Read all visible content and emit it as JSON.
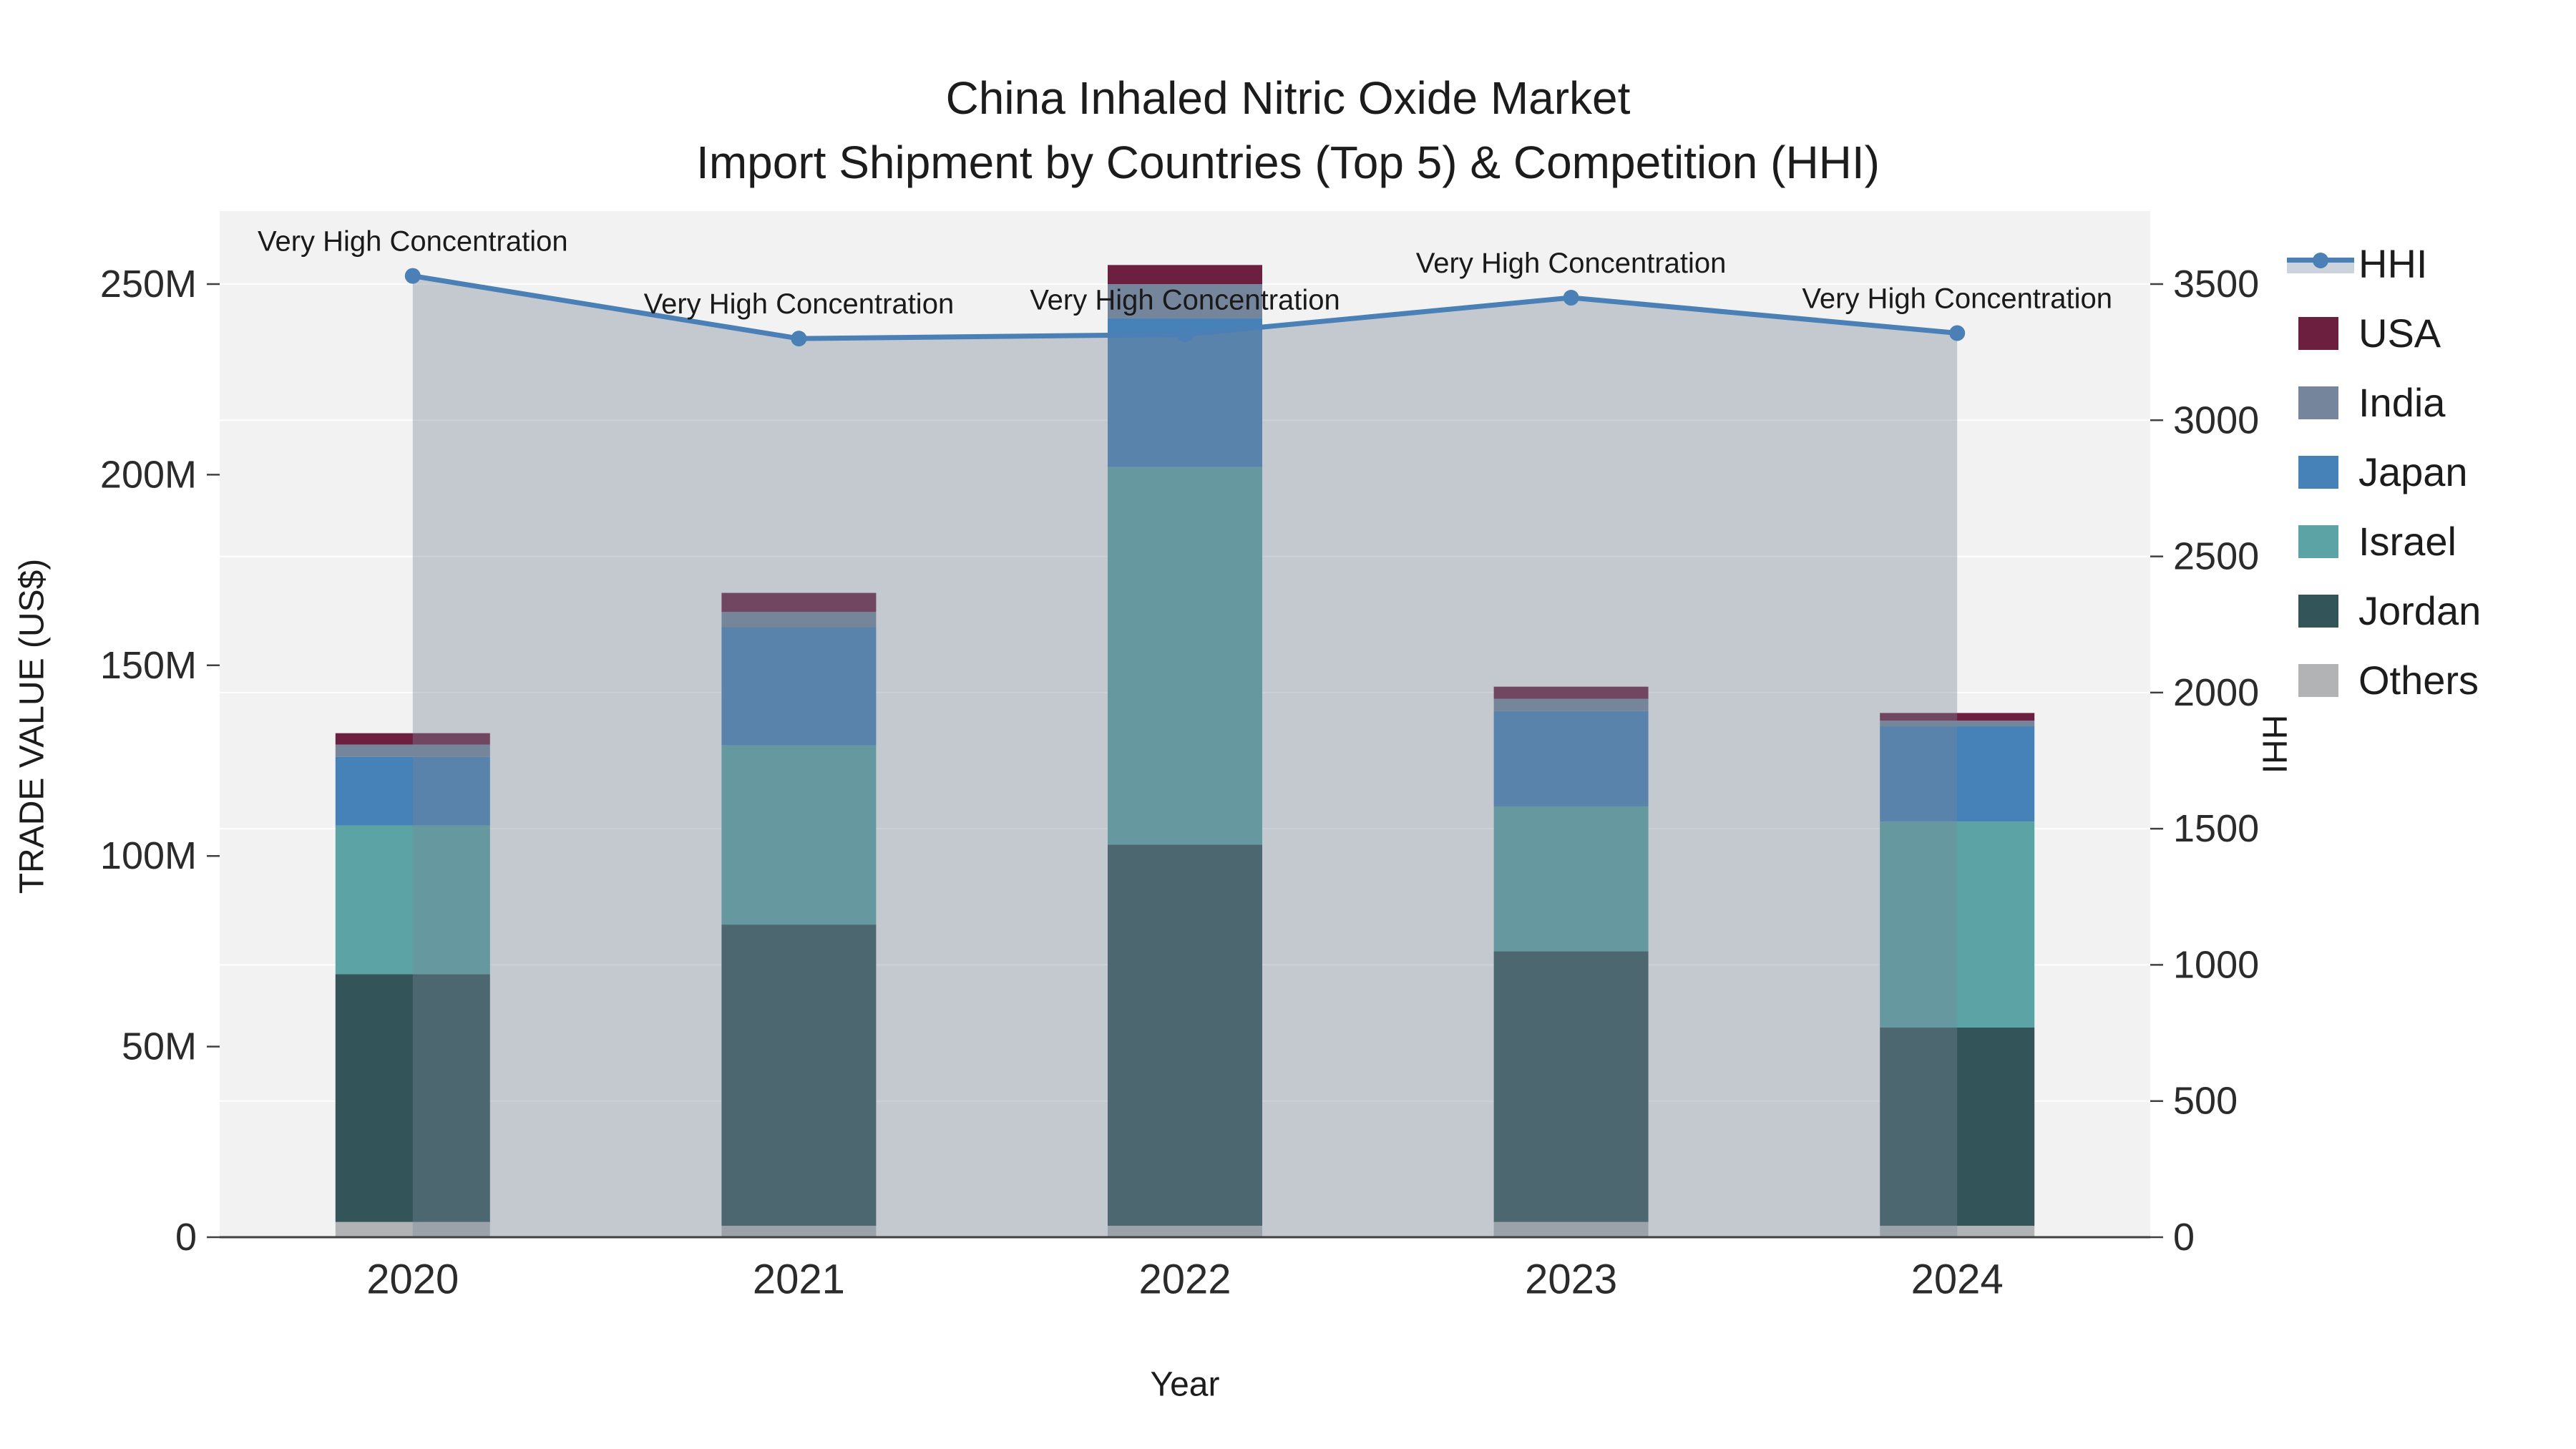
{
  "title": {
    "line1": "China Inhaled Nitric Oxide Market",
    "line2": "Import Shipment by Countries (Top 5) & Competition (HHI)"
  },
  "colors": {
    "page_background": "#ffffff",
    "plot_background": "#f2f2f3",
    "gridline": "#ffffff",
    "axis_line": "#404040",
    "text": "#1c1c1c",
    "tick_text": "#2b2b2b",
    "hhi_line": "#4a80b5",
    "hhi_area_fill": "rgba(122,134,152,0.38)",
    "hhi_legend_band": "#ccd3dd",
    "usa": "#6d1f40",
    "india": "#75869c",
    "japan": "#4681b7",
    "israel": "#5ba3a5",
    "jordan": "#335559",
    "others": "#b1b3b5"
  },
  "chart_data": {
    "type": "combo-stacked-bar-line",
    "title": "China Inhaled Nitric Oxide Market\nImport Shipment by Countries (Top 5) & Competition (HHI)",
    "xlabel": "Year",
    "ylabel_left": "TRADE VALUE (US$)",
    "ylabel_right": "HHI",
    "categories": [
      "2020",
      "2021",
      "2022",
      "2023",
      "2024"
    ],
    "bar_stack_order_bottom_to_top": [
      "Others",
      "Jordan",
      "Israel",
      "Japan",
      "India",
      "USA"
    ],
    "series": [
      {
        "name": "Others",
        "color_key": "others",
        "values_musd": [
          4,
          3,
          3,
          4,
          3
        ]
      },
      {
        "name": "Jordan",
        "color_key": "jordan",
        "values_musd": [
          65,
          79,
          100,
          71,
          52
        ]
      },
      {
        "name": "Israel",
        "color_key": "israel",
        "values_musd": [
          39,
          47,
          99,
          38,
          54
        ]
      },
      {
        "name": "Japan",
        "color_key": "japan",
        "values_musd": [
          18,
          31,
          39,
          25,
          25
        ]
      },
      {
        "name": "India",
        "color_key": "india",
        "values_musd": [
          3.2,
          4,
          9,
          3.2,
          1.5
        ]
      },
      {
        "name": "USA",
        "color_key": "usa",
        "values_musd": [
          3,
          5,
          5,
          3.2,
          2
        ]
      }
    ],
    "bar_totals_musd": [
      132.2,
      169,
      255,
      144.4,
      137.5
    ],
    "line_series": {
      "name": "HHI",
      "color_key": "hhi_line",
      "values": [
        3530,
        3300,
        3315,
        3450,
        3320
      ],
      "area_fill_from_first_to_last_point": true,
      "point_annotations": [
        "Very High Concentration",
        "Very High Concentration",
        "Very High Concentration",
        "Very High Concentration",
        "Very High Concentration"
      ]
    },
    "left_axis": {
      "label": "TRADE VALUE (US$)",
      "tick_labels": [
        "0",
        "50M",
        "100M",
        "150M",
        "200M",
        "250M"
      ],
      "tick_values_musd": [
        0,
        50,
        100,
        150,
        200,
        250
      ],
      "range_musd": [
        0,
        269
      ]
    },
    "right_axis": {
      "label": "HHI",
      "tick_labels": [
        "0",
        "500",
        "1000",
        "1500",
        "2000",
        "2500",
        "3000",
        "3500"
      ],
      "tick_values": [
        0,
        500,
        1000,
        1500,
        2000,
        2500,
        3000,
        3500
      ],
      "range": [
        0,
        3766
      ]
    },
    "grid": "horizontal, at right-axis ticks",
    "legend_position": "right"
  },
  "legend": {
    "items": [
      {
        "label": "HHI",
        "type": "line",
        "color_key": "hhi_line"
      },
      {
        "label": "USA",
        "type": "patch",
        "color_key": "usa"
      },
      {
        "label": "India",
        "type": "patch",
        "color_key": "india"
      },
      {
        "label": "Japan",
        "type": "patch",
        "color_key": "japan"
      },
      {
        "label": "Israel",
        "type": "patch",
        "color_key": "israel"
      },
      {
        "label": "Jordan",
        "type": "patch",
        "color_key": "jordan"
      },
      {
        "label": "Others",
        "type": "patch",
        "color_key": "others"
      }
    ]
  }
}
